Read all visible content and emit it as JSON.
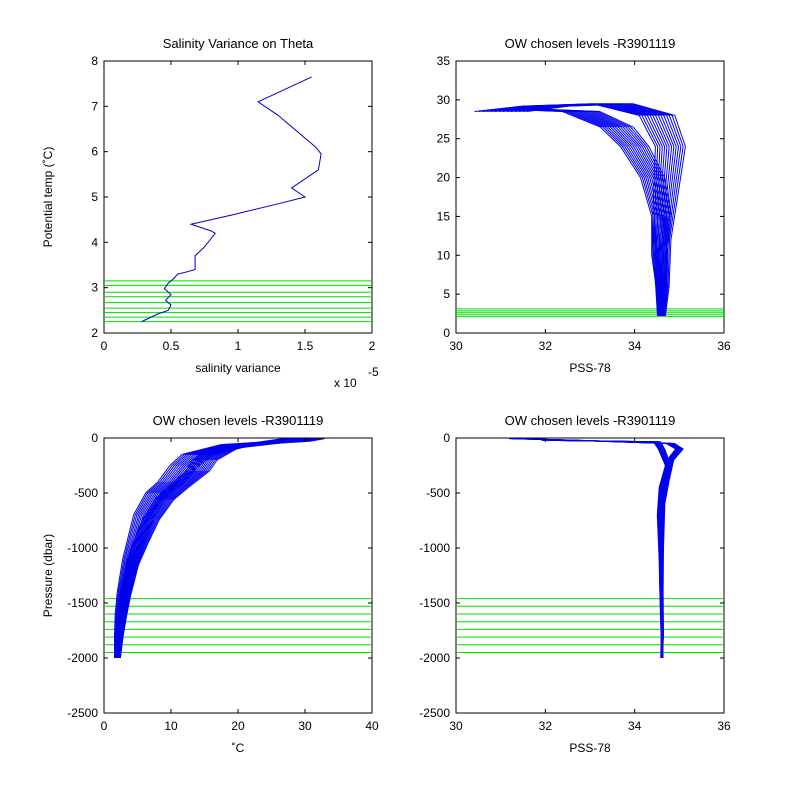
{
  "chart_data": [
    {
      "type": "line",
      "title": "Salinity Variance on Theta",
      "xlabel": "salinity variance",
      "x_exponent_label": "x 10",
      "x_exponent": "-5",
      "ylabel": "Potential temp (˚C)",
      "xlim": [
        0,
        2
      ],
      "ylim": [
        2,
        8
      ],
      "xticks": [
        "0",
        "0.5",
        "1",
        "1.5",
        "2"
      ],
      "yticks": [
        "2",
        "3",
        "4",
        "5",
        "6",
        "7",
        "8"
      ],
      "line_color": "#0000cc",
      "level_color": "#00dd00",
      "levels": [
        2.25,
        2.35,
        2.45,
        2.55,
        2.67,
        2.8,
        2.9,
        3.05,
        3.15
      ],
      "series": [
        {
          "x": [
            0.28,
            0.33,
            0.4,
            0.48,
            0.5,
            0.46,
            0.5,
            0.45,
            0.48,
            0.5,
            0.52,
            0.55,
            0.62,
            0.68,
            0.68,
            0.75,
            0.83,
            0.8,
            0.65,
            0.95,
            1.3,
            1.5,
            1.4,
            1.45,
            1.6,
            1.62,
            1.58,
            1.5,
            1.3,
            1.15,
            1.55
          ],
          "y": [
            2.25,
            2.32,
            2.42,
            2.5,
            2.62,
            2.72,
            2.85,
            2.98,
            3.1,
            3.15,
            3.2,
            3.3,
            3.35,
            3.4,
            3.7,
            3.9,
            4.2,
            4.25,
            4.4,
            4.6,
            4.85,
            5.0,
            5.2,
            5.3,
            5.6,
            5.95,
            6.1,
            6.3,
            6.8,
            7.1,
            7.65
          ]
        }
      ]
    },
    {
      "type": "line",
      "title": "OW chosen levels -R3901119",
      "xlabel": "PSS-78",
      "ylabel": "",
      "xlim": [
        30,
        36
      ],
      "ylim": [
        0,
        35
      ],
      "xticks": [
        "30",
        "32",
        "34",
        "36"
      ],
      "yticks": [
        "0",
        "5",
        "10",
        "15",
        "20",
        "25",
        "30",
        "35"
      ],
      "line_color": "#0000ee",
      "level_color": "#00dd00",
      "levels": [
        2.1,
        2.35,
        2.6,
        2.85,
        3.1
      ],
      "series": [
        {
          "x": [
            31.0,
            32.0,
            33.5,
            34.5,
            34.8,
            34.7,
            34.6,
            34.62,
            34.6
          ],
          "y": [
            28.5,
            29.2,
            29.5,
            28.0,
            24.0,
            18.0,
            12.0,
            6.0,
            2.2
          ]
        },
        {
          "x": [
            31.5,
            32.8,
            33.6,
            34.0,
            34.4,
            34.6,
            34.55,
            34.6,
            34.6
          ],
          "y": [
            28.8,
            28.5,
            26.5,
            24.0,
            20.0,
            15.0,
            10.0,
            6.0,
            2.2
          ]
        }
      ]
    },
    {
      "type": "line",
      "title": "OW chosen levels -R3901119",
      "xlabel": "˚C",
      "ylabel": "Pressure (dbar)",
      "xlim": [
        0,
        40
      ],
      "ylim": [
        -2500,
        0
      ],
      "xticks": [
        "0",
        "10",
        "20",
        "30",
        "40"
      ],
      "yticks": [
        "-2500",
        "-2000",
        "-1500",
        "-1000",
        "-500",
        "0"
      ],
      "line_color": "#0000ee",
      "level_color": "#00dd00",
      "levels": [
        -1460,
        -1530,
        -1600,
        -1670,
        -1740,
        -1810,
        -1880,
        -1950
      ],
      "series": [
        {
          "x": [
            30,
            28,
            20,
            14,
            12,
            10,
            8,
            6,
            5,
            4,
            3,
            2.5,
            2.2,
            2.0
          ],
          "y": [
            -5,
            -30,
            -60,
            -150,
            -250,
            -400,
            -500,
            -700,
            -900,
            -1100,
            -1400,
            -1600,
            -1800,
            -2000
          ]
        },
        {
          "x": [
            29,
            25,
            18,
            15,
            14,
            11,
            9,
            7,
            5.5,
            4.2,
            3.2,
            2.7,
            2.3,
            2.1
          ],
          "y": [
            -5,
            -40,
            -90,
            -200,
            -300,
            -450,
            -560,
            -740,
            -950,
            -1150,
            -1420,
            -1620,
            -1820,
            -2000
          ]
        }
      ]
    },
    {
      "type": "line",
      "title": "OW chosen levels -R3901119",
      "xlabel": "PSS-78",
      "ylabel": "",
      "xlim": [
        30,
        36
      ],
      "ylim": [
        -2500,
        0
      ],
      "xticks": [
        "30",
        "32",
        "34",
        "36"
      ],
      "yticks": [
        "-2500",
        "-2000",
        "-1500",
        "-1000",
        "-500",
        "0"
      ],
      "line_color": "#0000ee",
      "level_color": "#00dd00",
      "levels": [
        -1460,
        -1530,
        -1600,
        -1670,
        -1740,
        -1810,
        -1880,
        -1950
      ],
      "series": [
        {
          "x": [
            31.3,
            33.0,
            34.8,
            35.0,
            34.8,
            34.7,
            34.62,
            34.6,
            34.6,
            34.62,
            34.6
          ],
          "y": [
            -5,
            -25,
            -50,
            -100,
            -200,
            -400,
            -600,
            -1000,
            -1400,
            -1800,
            -2000
          ]
        },
        {
          "x": [
            32.0,
            34.5,
            34.6,
            34.75,
            34.6,
            34.55,
            34.58,
            34.6,
            34.62
          ],
          "y": [
            -20,
            -35,
            -100,
            -250,
            -450,
            -700,
            -1100,
            -1600,
            -2000
          ]
        }
      ]
    }
  ]
}
